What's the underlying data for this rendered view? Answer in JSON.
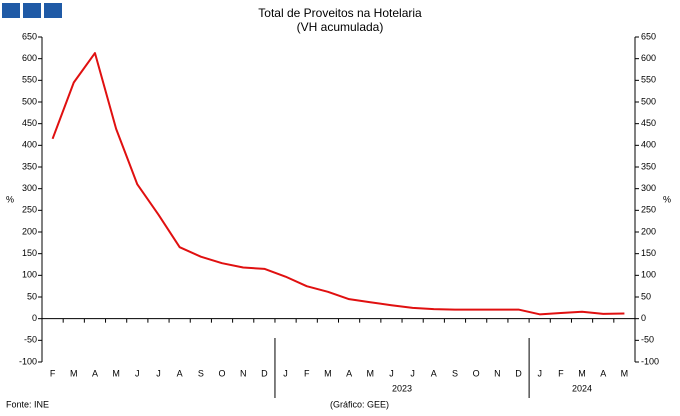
{
  "chart_data": {
    "type": "line",
    "title": "Total de Proveitos na Hotelaria",
    "subtitle": "(VH acumulada)",
    "y_label": "%",
    "y2_label": "%",
    "categories": [
      "F",
      "M",
      "A",
      "M",
      "J",
      "J",
      "A",
      "S",
      "O",
      "N",
      "D",
      "J",
      "F",
      "M",
      "A",
      "M",
      "J",
      "J",
      "A",
      "S",
      "O",
      "N",
      "D",
      "J",
      "F",
      "M",
      "A",
      "M"
    ],
    "groups": [
      {
        "label": "2023",
        "from": 11,
        "to": 22
      },
      {
        "label": "2024",
        "from": 23,
        "to": 27
      }
    ],
    "series": [
      {
        "name": "Total de Proveitos",
        "color": "#e01010",
        "values": [
          415,
          545,
          613,
          438,
          310,
          240,
          165,
          143,
          128,
          118,
          115,
          97,
          75,
          62,
          45,
          38,
          31,
          25,
          22,
          21,
          21,
          21,
          21,
          10,
          13,
          16,
          11,
          12
        ]
      }
    ],
    "ylim": [
      -100,
      650
    ],
    "yticks": [
      -100,
      -50,
      0,
      50,
      100,
      150,
      200,
      250,
      300,
      350,
      400,
      450,
      500,
      550,
      600,
      650
    ],
    "y2lim": [
      -100,
      650
    ],
    "y2ticks": [
      -100,
      -50,
      0,
      50,
      100,
      150,
      200,
      250,
      300,
      350,
      400,
      450,
      500,
      550,
      600,
      650
    ],
    "grid": false,
    "source": "Fonte: INE",
    "credit": "(Gráfico: GEE)"
  }
}
